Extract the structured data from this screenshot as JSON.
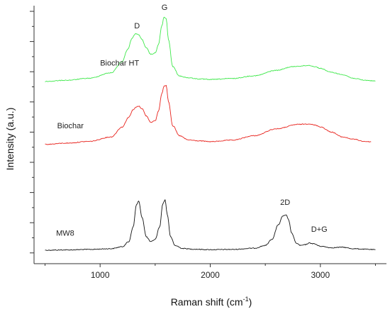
{
  "chart_data": {
    "type": "line",
    "title": "",
    "xlabel_main": "Raman shift (cm",
    "xlabel_sup": "-1",
    "xlabel_end": ")",
    "ylabel": "Intensity (a.u.)",
    "xlim": [
      400,
      3600
    ],
    "ylim": [
      0,
      100
    ],
    "xticks": [
      1000,
      2000,
      3000
    ],
    "xtick_labels": [
      "1000",
      "2000",
      "3000"
    ],
    "yaxis_tick_labels": false,
    "grid": false,
    "legend": "none",
    "series": [
      {
        "name": "MW8",
        "color": "#111111",
        "x": [
          500,
          700,
          900,
          1100,
          1200,
          1260,
          1300,
          1330,
          1350,
          1380,
          1420,
          1460,
          1500,
          1540,
          1570,
          1590,
          1610,
          1640,
          1680,
          1750,
          1850,
          2000,
          2200,
          2400,
          2500,
          2560,
          2620,
          2660,
          2690,
          2710,
          2740,
          2780,
          2820,
          2860,
          2900,
          2940,
          3000,
          3100,
          3200,
          3300,
          3400,
          3500
        ],
        "y": [
          2.6,
          2.7,
          2.9,
          3.2,
          4.0,
          6.0,
          12.0,
          21.0,
          22.5,
          16.0,
          8.0,
          6.0,
          7.0,
          12.0,
          21.5,
          23.0,
          17.0,
          8.0,
          4.5,
          3.3,
          3.0,
          2.8,
          2.9,
          3.4,
          4.5,
          7.0,
          13.0,
          16.5,
          16.8,
          15.0,
          9.5,
          5.5,
          4.5,
          4.8,
          5.5,
          5.2,
          4.2,
          3.6,
          3.8,
          3.2,
          3.0,
          2.8
        ]
      },
      {
        "name": "Biochar",
        "color": "#e8221c",
        "x": [
          500,
          700,
          900,
          1100,
          1200,
          1260,
          1300,
          1330,
          1350,
          1380,
          1420,
          1460,
          1500,
          1530,
          1560,
          1580,
          1600,
          1620,
          1660,
          1720,
          1800,
          1900,
          2000,
          2200,
          2400,
          2600,
          2800,
          2900,
          2950,
          3000,
          3100,
          3200,
          3300,
          3400,
          3460
        ],
        "y": [
          45.5,
          46.0,
          46.7,
          48.5,
          52.5,
          56.5,
          59.5,
          60.7,
          61.0,
          60.0,
          57.0,
          54.5,
          55.0,
          59.0,
          66.0,
          69.0,
          69.5,
          63.0,
          53.0,
          49.0,
          47.3,
          46.9,
          46.6,
          47.2,
          49.0,
          51.8,
          53.6,
          53.8,
          53.3,
          52.6,
          50.5,
          48.5,
          47.6,
          46.7,
          46.5
        ]
      },
      {
        "name": "Biochar HT",
        "color": "#3ee84a",
        "x": [
          500,
          700,
          900,
          1100,
          1200,
          1250,
          1290,
          1320,
          1350,
          1380,
          1420,
          1460,
          1500,
          1530,
          1560,
          1580,
          1600,
          1620,
          1660,
          1720,
          1800,
          1900,
          2000,
          2200,
          2400,
          2600,
          2750,
          2800,
          2900,
          2950,
          3000,
          3100,
          3200,
          3300,
          3400,
          3500
        ],
        "y": [
          71.0,
          71.5,
          72.3,
          74.5,
          79.0,
          84.0,
          88.5,
          90.3,
          90.0,
          88.0,
          84.5,
          82.0,
          82.5,
          86.0,
          93.5,
          97.0,
          96.5,
          88.0,
          77.0,
          73.2,
          72.5,
          72.0,
          71.8,
          72.2,
          73.3,
          75.5,
          77.0,
          77.2,
          77.5,
          77.0,
          76.3,
          74.7,
          73.8,
          72.3,
          71.5,
          71.2
        ]
      }
    ],
    "series_labels": [
      {
        "text": "MW8",
        "at_x": 600,
        "at_y": 8.5
      },
      {
        "text": "Biochar",
        "at_x": 610,
        "at_y": 52
      },
      {
        "text": "Biochar HT",
        "at_x": 1000,
        "at_y": 77.5
      }
    ],
    "annotations": [
      {
        "text": "D",
        "at_x": 1335,
        "at_y": 92.5
      },
      {
        "text": "G",
        "at_x": 1585,
        "at_y": 100
      },
      {
        "text": "2D",
        "at_x": 2680,
        "at_y": 21
      },
      {
        "text": "D+G",
        "at_x": 2990,
        "at_y": 10
      }
    ]
  }
}
